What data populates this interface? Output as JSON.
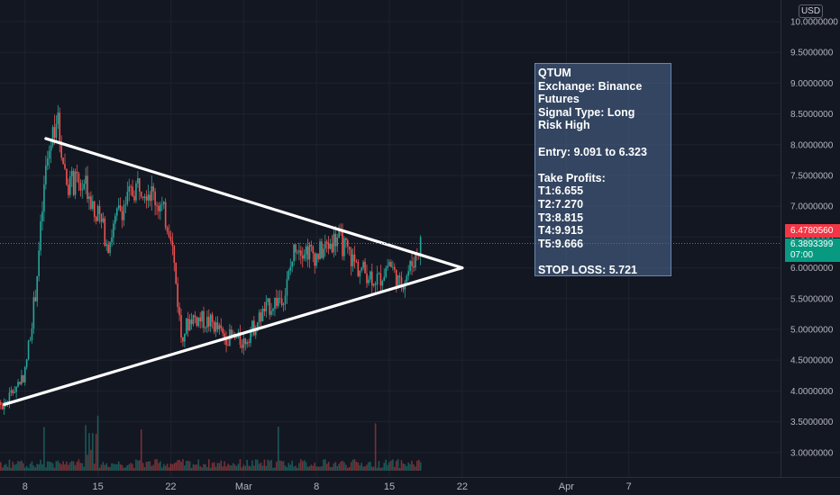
{
  "chart_data": {
    "type": "candlestick",
    "title": "",
    "currency": "USD",
    "y_ticks": [
      "10.0000000",
      "9.5000000",
      "9.0000000",
      "8.5000000",
      "8.0000000",
      "7.5000000",
      "7.0000000",
      "6.5000000",
      "6.0000000",
      "5.5000000",
      "5.0000000",
      "4.5000000",
      "4.0000000",
      "3.5000000",
      "3.0000000"
    ],
    "y_range": [
      2.82,
      10.2
    ],
    "x_ticks": [
      "8",
      "15",
      "22",
      "Mar",
      "8",
      "15",
      "22",
      "Apr",
      "7"
    ],
    "x_range": [
      "2021-02-03",
      "2021-04-10"
    ],
    "trendlines": [
      {
        "name": "upper",
        "from": {
          "date": "2021-02-10",
          "price": 8.1
        },
        "to": {
          "date": "2021-03-22",
          "price": 6.0
        }
      },
      {
        "name": "lower",
        "from": {
          "date": "2021-02-06",
          "price": 3.78
        },
        "to": {
          "date": "2021-03-22",
          "price": 6.0
        }
      }
    ],
    "last_price_high": "6.4780560",
    "last_price": "6.3893399",
    "countdown": "07:00"
  },
  "signal": {
    "lines": [
      "QTUM",
      "Exchange: Binance",
      "Futures",
      "Signal Type: Long",
      "Risk High",
      "",
      "Entry: 9.091 to 6.323",
      "",
      "Take Profits:",
      "T1:6.655",
      "T2:7.270",
      "T3:8.815",
      "T4:9.915",
      "T5:9.666",
      "",
      "STOP LOSS: 5.721"
    ]
  },
  "colors": {
    "up": "#26a69a",
    "down": "#ef5350",
    "background": "#131722",
    "trendline": "#ffffff"
  }
}
